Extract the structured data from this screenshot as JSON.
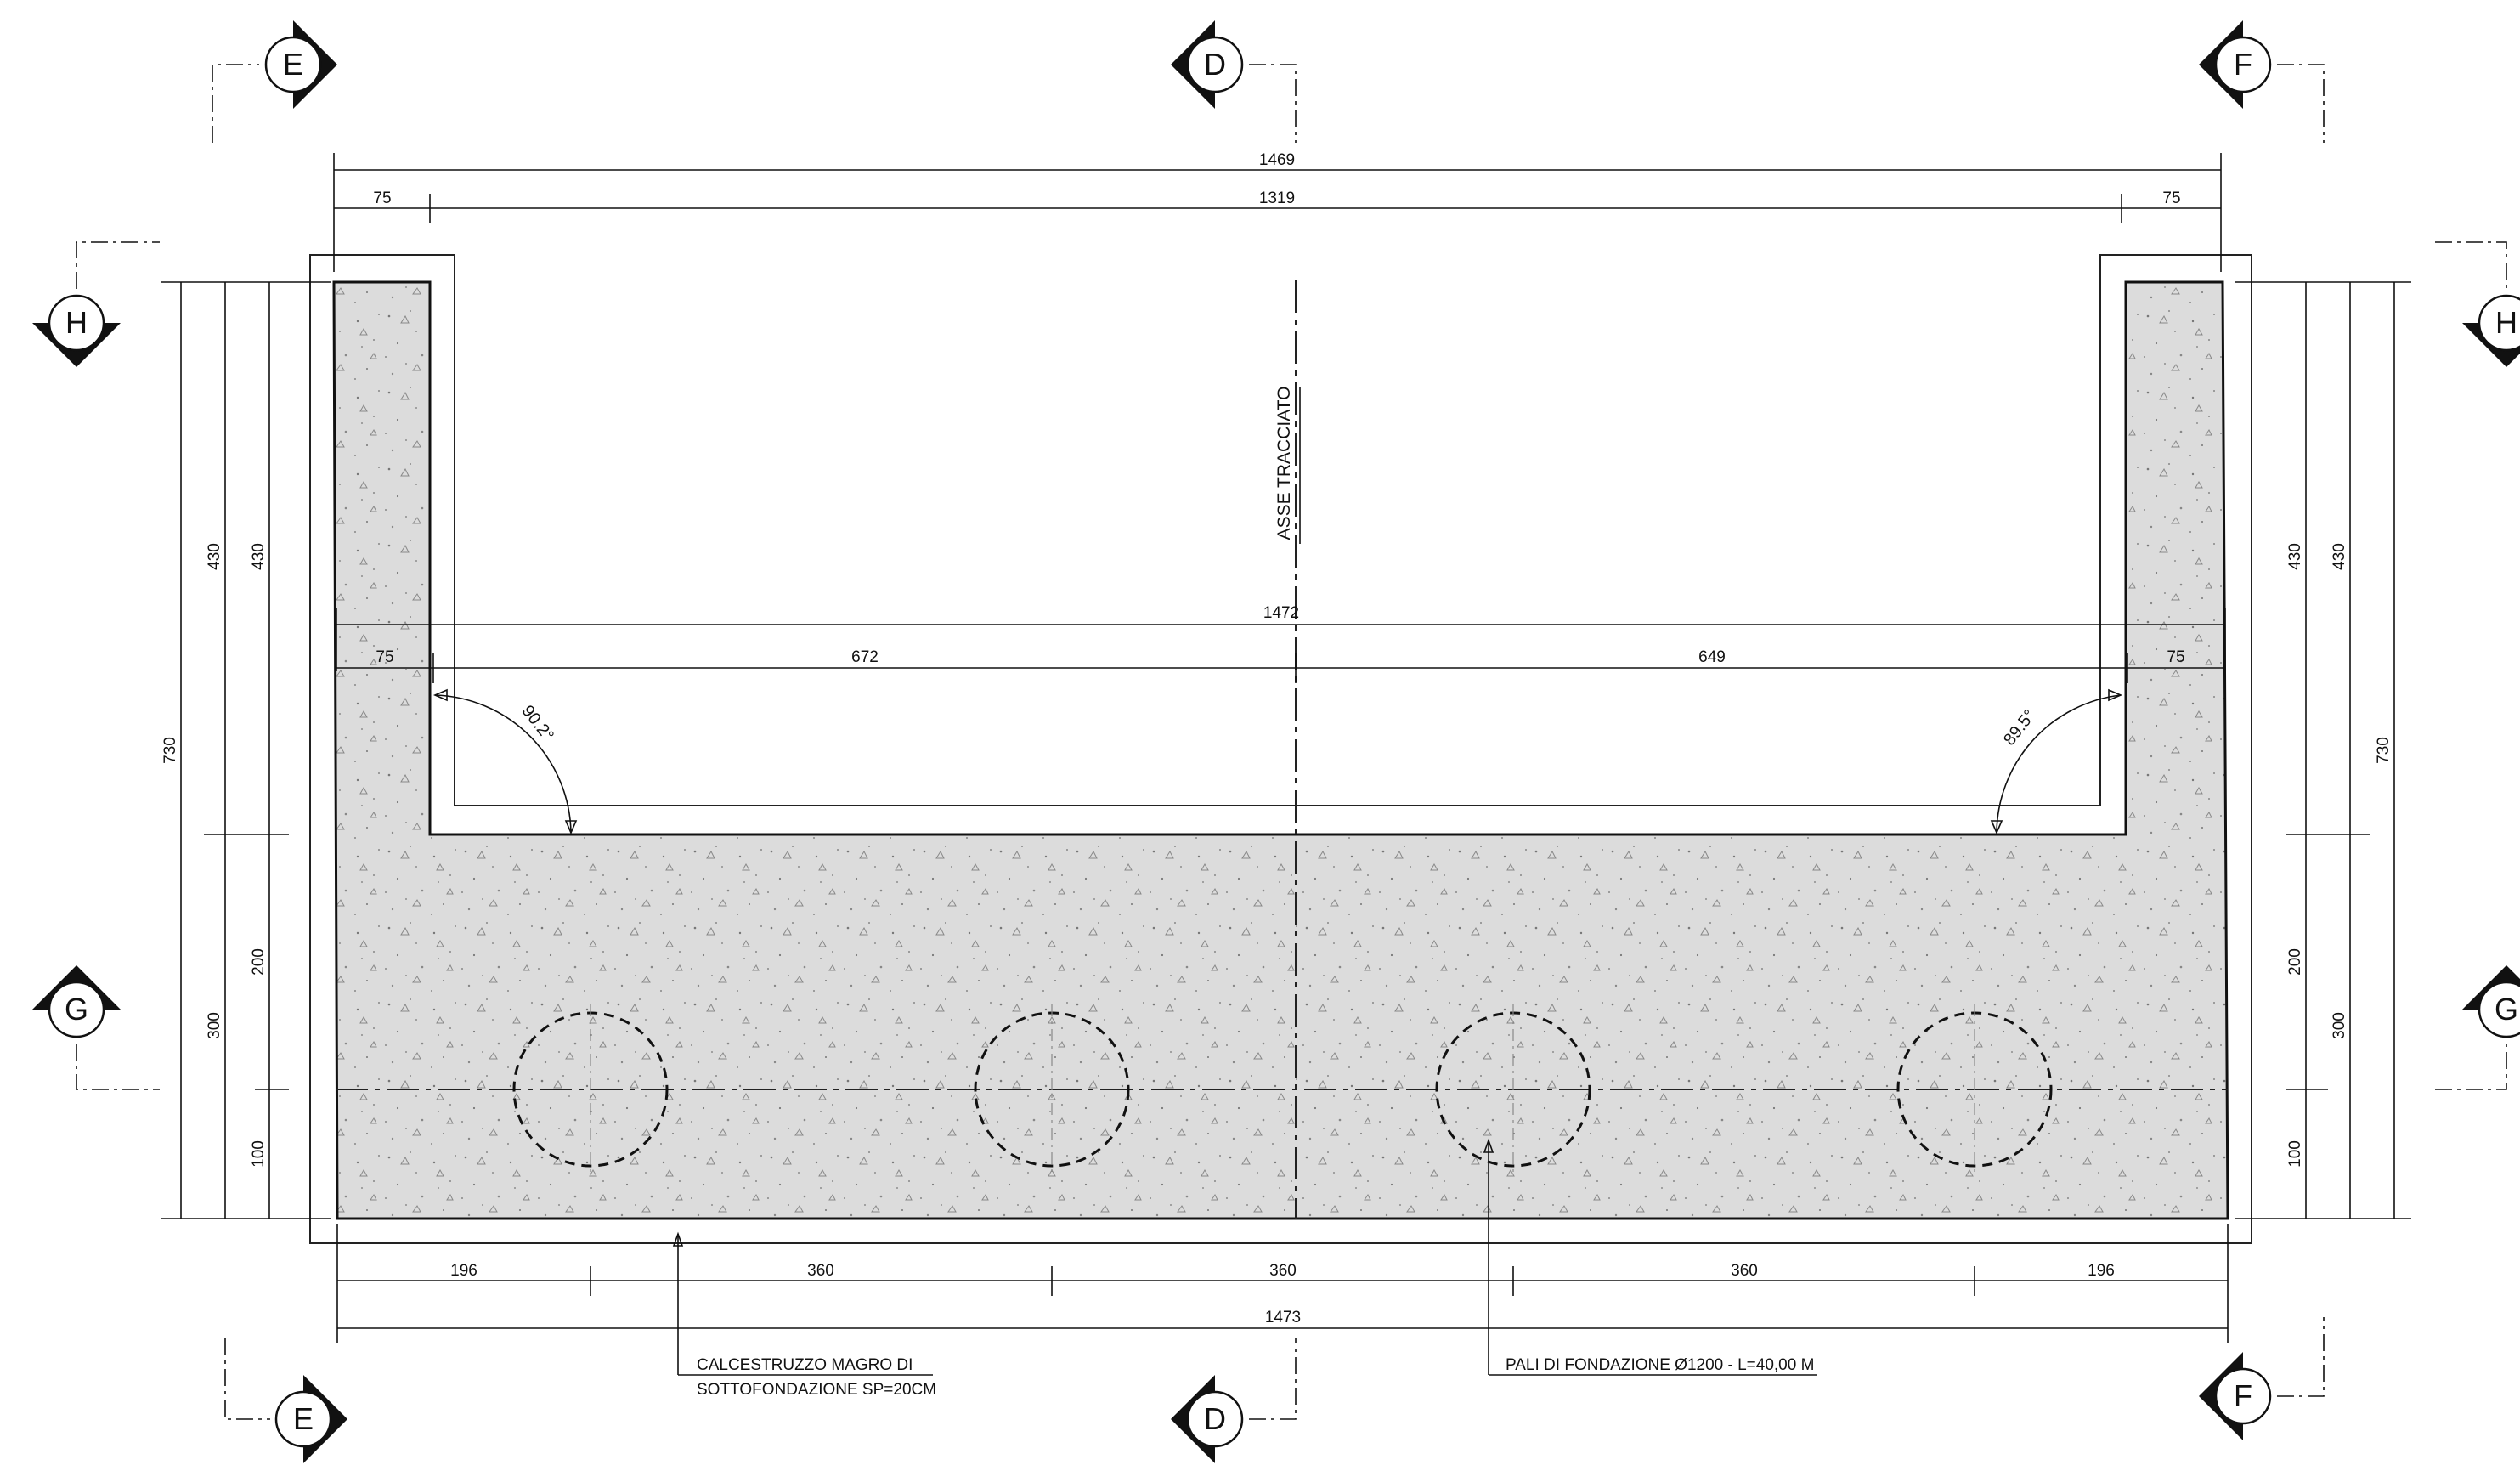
{
  "axis_label": "ASSE TRACCIATO",
  "sections": [
    {
      "letter": "E",
      "label": "E"
    },
    {
      "letter": "D",
      "label": "D"
    },
    {
      "letter": "F",
      "label": "F"
    },
    {
      "letter": "H",
      "label": "H"
    },
    {
      "letter": "G",
      "label": "G"
    }
  ],
  "dimensions": {
    "top_total": "1469",
    "top_left": "75",
    "top_middle": "1319",
    "top_right": "75",
    "inner_total": "1472",
    "inner_left": "75",
    "inner_mid_left": "672",
    "inner_mid_right": "649",
    "inner_right": "75",
    "bottom_segments": [
      "196",
      "360",
      "360",
      "360",
      "196"
    ],
    "bottom_total": "1473",
    "left_total": "730",
    "left_upper_a": "430",
    "left_upper_b": "430",
    "left_lower": "300",
    "left_mid": "200",
    "left_bottom": "100",
    "right_total": "730",
    "right_upper_a": "430",
    "right_upper_b": "430",
    "right_lower": "300",
    "right_mid": "200",
    "right_bottom": "100"
  },
  "angles": {
    "left": "90.2°",
    "right": "89.5°"
  },
  "notes": {
    "magro_line1": "CALCESTRUZZO MAGRO DI",
    "magro_line2": "SOTTOFONDAZIONE SP=20CM",
    "pali": "PALI DI FONDAZIONE Ø1200 - L=40,00 M"
  },
  "colors": {
    "concrete": "#dedede",
    "line": "#111111"
  }
}
